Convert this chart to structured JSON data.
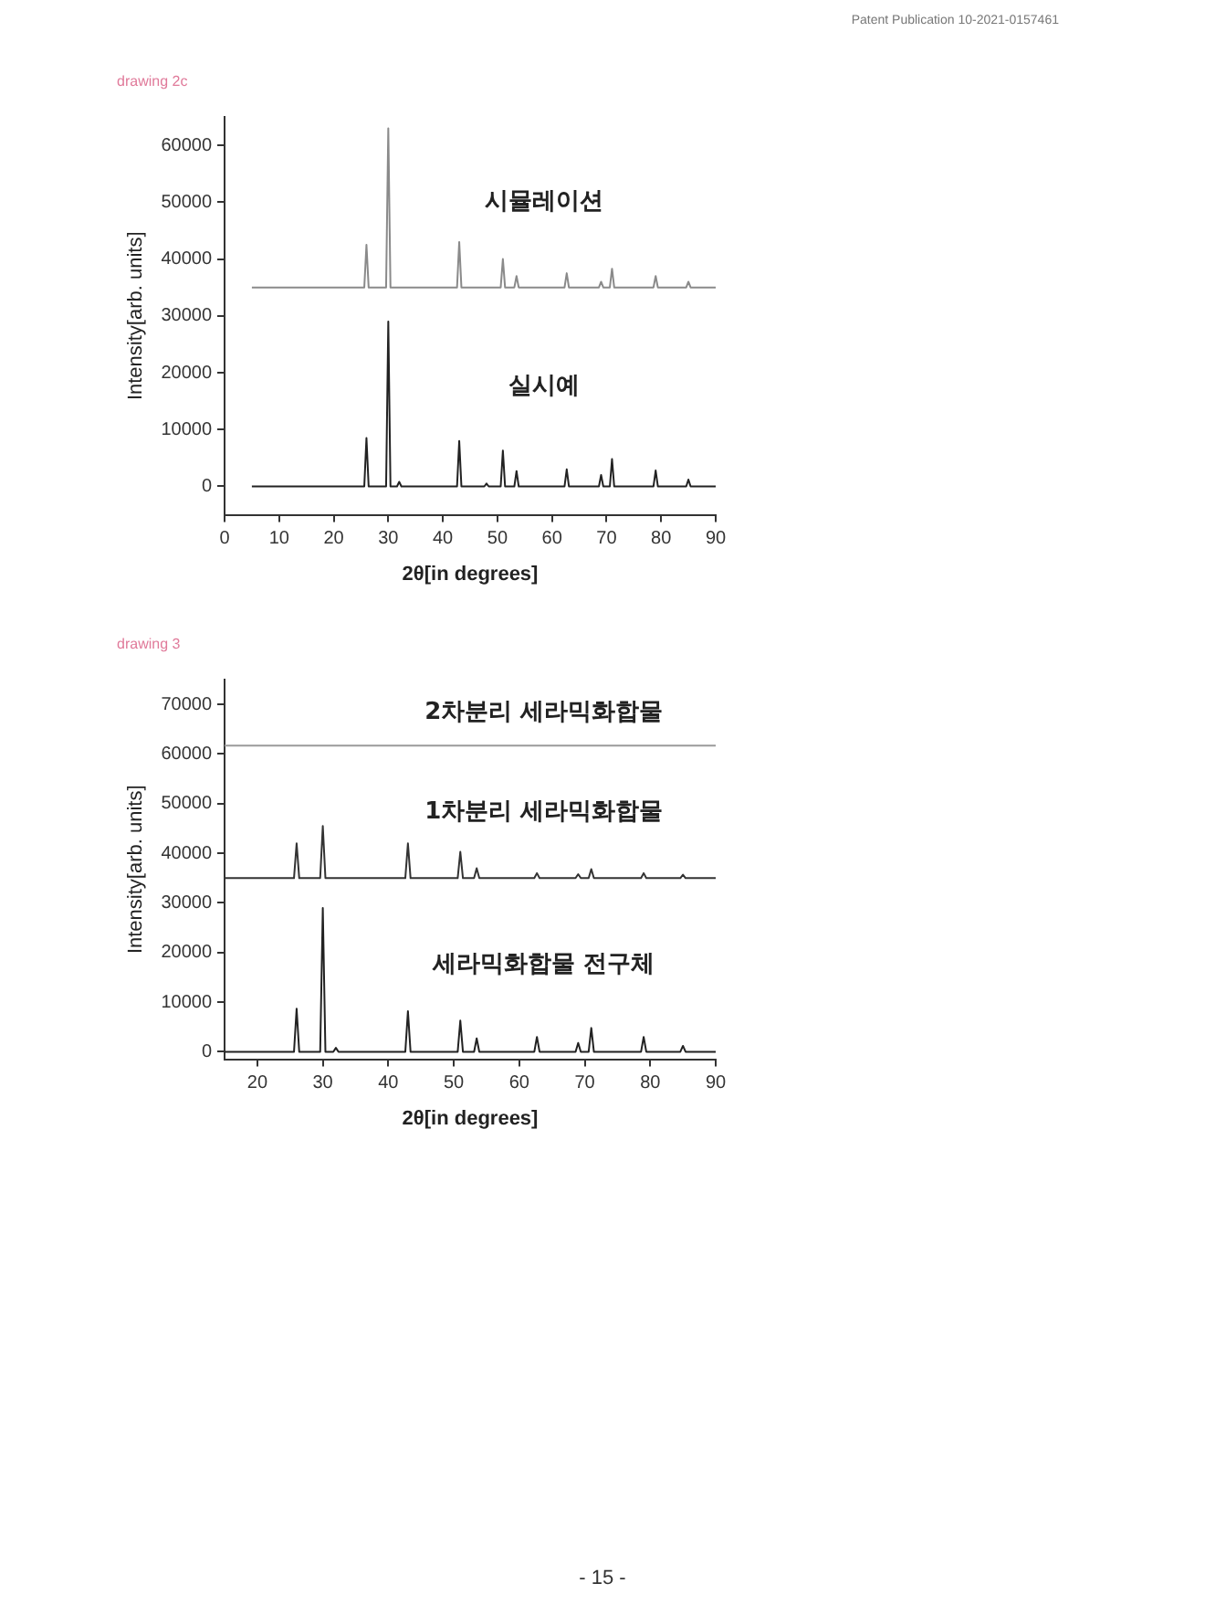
{
  "chart_data": [
    {
      "type": "line",
      "title": "drawing 2c",
      "xlabel": "2θ[in degrees]",
      "ylabel": "Intensity[arb. units]",
      "annotations": [
        "Patent Publication 10-2021-0157461"
      ],
      "xlim": [
        0,
        90
      ],
      "xticks": [
        0,
        10,
        20,
        30,
        40,
        50,
        60,
        70,
        80,
        90
      ],
      "ylim": [
        -5000,
        65000
      ],
      "yticks": [
        0,
        10000,
        20000,
        30000,
        40000,
        50000,
        60000
      ],
      "grid": false,
      "legend": false,
      "marker": "none",
      "series": [
        {
          "name": "시뮬레이션",
          "color": "#8a8a8a",
          "x": [
            5,
            25.6,
            26,
            26.4,
            29.6,
            30,
            30.4,
            42.6,
            43,
            43.4,
            50.6,
            51,
            51.4,
            53.1,
            53.5,
            53.9,
            62.3,
            62.7,
            63.1,
            68.6,
            69,
            69.4,
            70.6,
            71,
            71.4,
            78.6,
            79,
            79.4,
            84.6,
            85,
            85.4,
            90
          ],
          "values": [
            35000,
            35000,
            42500,
            35000,
            35000,
            63000,
            35000,
            35000,
            43000,
            35000,
            35000,
            40000,
            35000,
            35000,
            37000,
            35000,
            35000,
            37500,
            35000,
            35000,
            36000,
            35000,
            35000,
            38300,
            35000,
            35000,
            37000,
            35000,
            35000,
            36000,
            35000,
            35000
          ]
        },
        {
          "name": "실시예",
          "color": "#222222",
          "x": [
            5,
            25.6,
            26,
            26.4,
            29.6,
            30,
            30.4,
            31.6,
            32,
            32.4,
            42.6,
            43,
            43.4,
            47.6,
            48,
            48.4,
            50.6,
            51,
            51.4,
            53.1,
            53.5,
            53.9,
            62.3,
            62.7,
            63.1,
            68.6,
            69,
            69.4,
            70.6,
            71,
            71.4,
            78.6,
            79,
            79.4,
            84.6,
            85,
            85.4,
            90
          ],
          "values": [
            0,
            0,
            8500,
            0,
            0,
            29000,
            0,
            0,
            800,
            0,
            0,
            8000,
            0,
            0,
            500,
            0,
            0,
            6300,
            0,
            0,
            2700,
            0,
            0,
            3000,
            0,
            0,
            2000,
            0,
            0,
            4800,
            0,
            0,
            2800,
            0,
            0,
            1200,
            0,
            0
          ]
        }
      ]
    },
    {
      "type": "line",
      "title": "drawing 3",
      "xlabel": "2θ[in degrees]",
      "ylabel": "Intensity[arb. units]",
      "annotations": [
        "- 15 -"
      ],
      "xlim": [
        15,
        90
      ],
      "xticks": [
        20,
        30,
        40,
        50,
        60,
        70,
        80,
        90
      ],
      "ylim": [
        -1500,
        75000
      ],
      "yticks": [
        0,
        10000,
        20000,
        30000,
        40000,
        50000,
        60000,
        70000
      ],
      "grid": false,
      "legend": false,
      "marker": "none",
      "series": [
        {
          "name": "2차분리 세라믹화합물",
          "color": "#9a9a9a",
          "x": [
            15,
            90
          ],
          "values": [
            61700,
            61700
          ]
        },
        {
          "name": "1차분리 세라믹화합물",
          "color": "#333333",
          "x": [
            15,
            25.6,
            26,
            26.4,
            29.6,
            30,
            30.4,
            42.6,
            43,
            43.4,
            50.6,
            51,
            51.4,
            53.1,
            53.5,
            53.9,
            62.3,
            62.7,
            63.1,
            68.6,
            69,
            69.4,
            70.6,
            71,
            71.4,
            78.6,
            79,
            79.4,
            84.6,
            85,
            85.4,
            90
          ],
          "values": [
            35000,
            35000,
            42000,
            35000,
            35000,
            45500,
            35000,
            35000,
            42000,
            35000,
            35000,
            40300,
            35000,
            35000,
            37000,
            35000,
            35000,
            36000,
            35000,
            35000,
            35800,
            35000,
            35000,
            36800,
            35000,
            35000,
            36000,
            35000,
            35000,
            35700,
            35000,
            35000
          ]
        },
        {
          "name": "세라믹화합물 전구체",
          "color": "#222222",
          "x": [
            15,
            25.6,
            26,
            26.4,
            29.6,
            30,
            30.4,
            31.6,
            32,
            32.4,
            42.6,
            43,
            43.4,
            50.6,
            51,
            51.4,
            53.1,
            53.5,
            53.9,
            62.3,
            62.7,
            63.1,
            68.6,
            69,
            69.4,
            70.6,
            71,
            71.4,
            78.6,
            79,
            79.4,
            84.6,
            85,
            85.4,
            90
          ],
          "values": [
            0,
            0,
            8700,
            0,
            0,
            29000,
            0,
            0,
            800,
            0,
            0,
            8200,
            0,
            0,
            6300,
            0,
            0,
            2700,
            0,
            0,
            3000,
            0,
            0,
            1800,
            0,
            0,
            4800,
            0,
            0,
            3000,
            0,
            0,
            1200,
            0,
            0
          ]
        }
      ]
    }
  ]
}
